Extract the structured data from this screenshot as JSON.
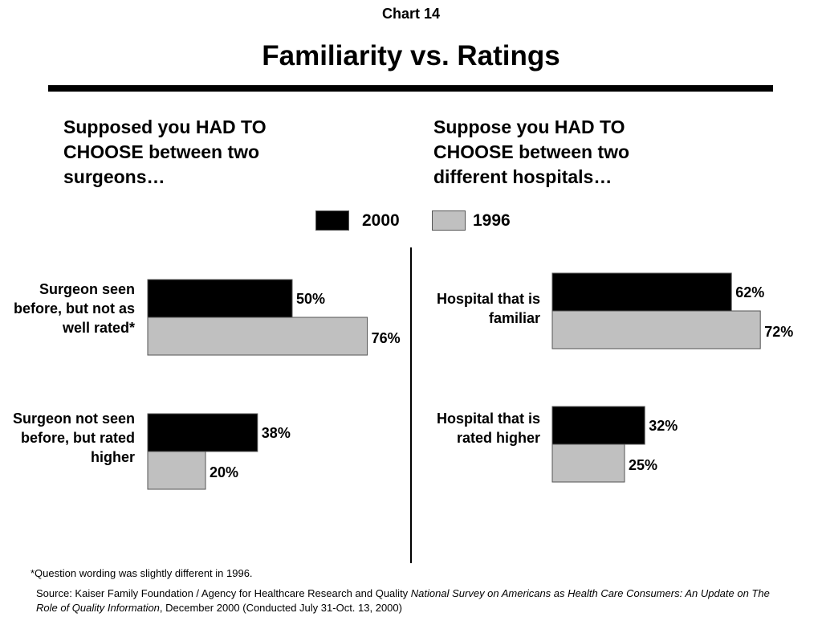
{
  "header": {
    "chart_number": "Chart 14",
    "title": "Familiarity vs. Ratings"
  },
  "colors": {
    "series_2000": "#000000",
    "series_1996": "#c0c0c0",
    "border": "#555555"
  },
  "legend": [
    {
      "name": "2000",
      "color": "#000000"
    },
    {
      "name": "1996",
      "color": "#c0c0c0"
    }
  ],
  "footnote": "*Question wording was slightly different in 1996.",
  "source": {
    "prefix": "Source: Kaiser Family Foundation / Agency for Healthcare Research and Quality ",
    "italic": "National Survey on Americans as Health Care Consumers:  An Update on The Role of Quality Information",
    "suffix": ", December 2000 (Conducted July 31-Oct. 13, 2000)"
  },
  "chart_data": [
    {
      "type": "bar",
      "orientation": "horizontal",
      "title": "Supposed you HAD TO CHOOSE between two surgeons…",
      "categories": [
        "Surgeon seen before, but not as well rated*",
        "Surgeon not seen before, but rated higher"
      ],
      "series": [
        {
          "name": "2000",
          "values": [
            50,
            38
          ],
          "labels": [
            "50%",
            "38%"
          ]
        },
        {
          "name": "1996",
          "values": [
            76,
            20
          ],
          "labels": [
            "76%",
            "20%"
          ]
        }
      ],
      "xlim": [
        0,
        100
      ],
      "grid": false,
      "legend_position": "top-center"
    },
    {
      "type": "bar",
      "orientation": "horizontal",
      "title": "Suppose you HAD TO CHOOSE between two different hospitals…",
      "categories": [
        "Hospital that is familiar",
        "Hospital that is rated higher"
      ],
      "series": [
        {
          "name": "2000",
          "values": [
            62,
            32
          ],
          "labels": [
            "62%",
            "32%"
          ]
        },
        {
          "name": "1996",
          "values": [
            72,
            25
          ],
          "labels": [
            "72%",
            "25%"
          ]
        }
      ],
      "xlim": [
        0,
        100
      ],
      "grid": false,
      "legend_position": "top-center"
    }
  ]
}
